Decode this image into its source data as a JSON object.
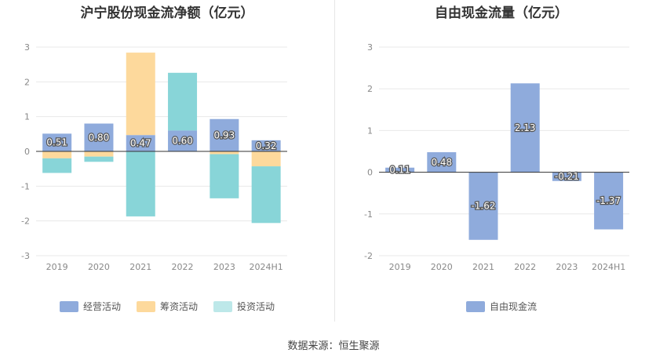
{
  "source": "数据来源：恒生聚源",
  "chart_data": [
    {
      "type": "bar",
      "stacked": true,
      "title": "沪宁股份现金流净额（亿元）",
      "categories": [
        "2019",
        "2020",
        "2021",
        "2022",
        "2023",
        "2024H1"
      ],
      "ylim": [
        -3,
        3
      ],
      "yticks": [
        "3",
        "2",
        "1",
        "0",
        "-1",
        "-2",
        "-3"
      ],
      "series": [
        {
          "name": "经营活动",
          "color": "#8fabdc",
          "values": [
            0.51,
            0.8,
            0.47,
            0.6,
            0.93,
            0.32
          ]
        },
        {
          "name": "筹资活动",
          "color": "#fdd99c",
          "values": [
            -0.2,
            -0.15,
            2.37,
            0,
            -0.08,
            -0.43
          ]
        },
        {
          "name": "投资活动",
          "color": "#88d5d8",
          "values": [
            -0.42,
            -0.15,
            -1.87,
            1.66,
            -1.27,
            -1.63
          ]
        }
      ],
      "labels": [
        "0.51",
        "0.80",
        "0.47",
        "0.60",
        "0.93",
        "0.32"
      ],
      "legend": [
        {
          "label": "经营活动",
          "color": "#8fabdc"
        },
        {
          "label": "筹资活动",
          "color": "#fdd99c"
        },
        {
          "label": "投资活动",
          "color": "#bde8e9"
        }
      ]
    },
    {
      "type": "bar",
      "title": "自由现金流量（亿元）",
      "categories": [
        "2019",
        "2020",
        "2021",
        "2022",
        "2023",
        "2024H1"
      ],
      "ylim": [
        -2,
        3
      ],
      "yticks": [
        "3",
        "2",
        "1",
        "0",
        "-1",
        "-2"
      ],
      "series": [
        {
          "name": "自由现金流",
          "color": "#8fabdc",
          "values": [
            0.11,
            0.48,
            -1.62,
            2.13,
            -0.21,
            -1.37
          ]
        }
      ],
      "labels": [
        "0.11",
        "0.48",
        "-1.62",
        "2.13",
        "-0.21",
        "-1.37"
      ],
      "legend": [
        {
          "label": "自由现金流",
          "color": "#8fabdc"
        }
      ]
    }
  ]
}
